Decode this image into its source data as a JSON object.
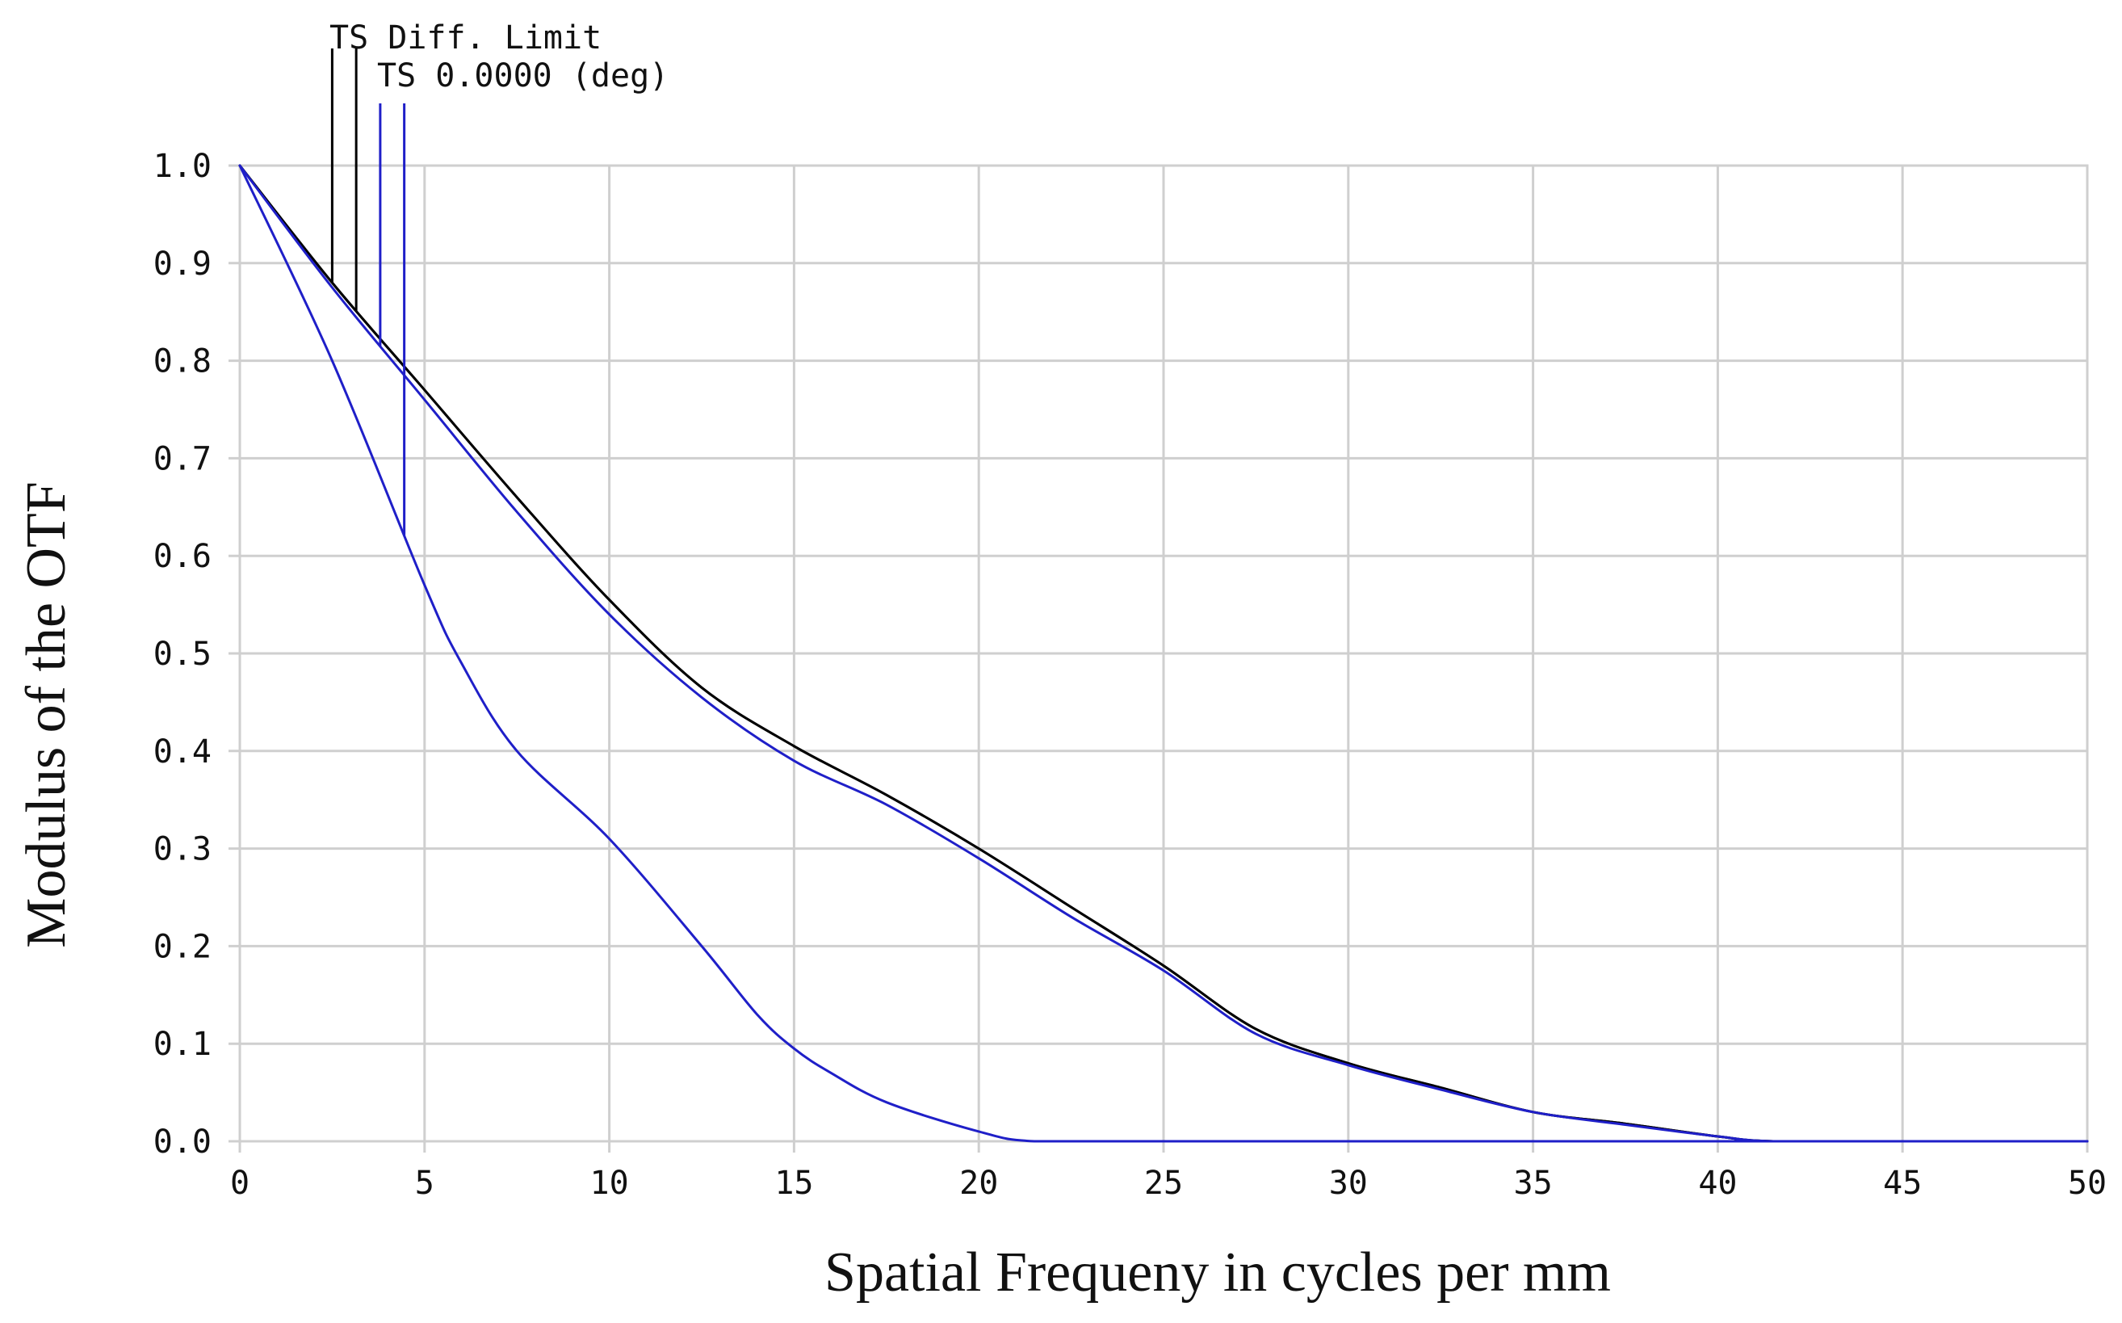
{
  "chart_data": {
    "type": "line",
    "title": "",
    "xlabel": "Spatial Frequeny in cycles per mm",
    "ylabel": "Modulus of the OTF",
    "xlim": [
      0,
      50
    ],
    "ylim": [
      0,
      1
    ],
    "grid": true,
    "x_ticks": [
      0,
      5,
      10,
      15,
      20,
      25,
      30,
      35,
      40,
      45,
      50
    ],
    "x_tick_labels": [
      "0",
      "5",
      "10",
      "15",
      "20",
      "25",
      "30",
      "35",
      "40",
      "45",
      "50"
    ],
    "y_ticks": [
      0,
      0.1,
      0.2,
      0.3,
      0.4,
      0.5,
      0.6,
      0.7,
      0.8,
      0.9,
      1.0
    ],
    "y_tick_labels": [
      "0.0",
      "0.1",
      "0.2",
      "0.3",
      "0.4",
      "0.5",
      "0.6",
      "0.7",
      "0.8",
      "0.9",
      "1.0"
    ],
    "legend": [
      "TS Diff. Limit",
      "TS 0.0000 (deg)"
    ],
    "legend_placement": "top-left",
    "series": [
      {
        "name": "TS Diff. Limit (T)",
        "color": "#000000",
        "legend_index": 0,
        "legend_marker_x": 2.5,
        "x": [
          0,
          2.5,
          5,
          7.5,
          10,
          12.5,
          15,
          17.5,
          20,
          22.5,
          25,
          27.5,
          30,
          32.5,
          35,
          37.5,
          40,
          41.5,
          45,
          50
        ],
        "y": [
          1.0,
          0.88,
          0.77,
          0.66,
          0.555,
          0.465,
          0.405,
          0.355,
          0.3,
          0.24,
          0.18,
          0.115,
          0.08,
          0.055,
          0.03,
          0.018,
          0.005,
          0.0,
          0.0,
          0.0
        ]
      },
      {
        "name": "TS Diff. Limit (S)",
        "color": "#000000",
        "legend_index": 0,
        "legend_marker_x": 3.15,
        "x": [
          0,
          2.5,
          5,
          7.5,
          10,
          12.5,
          15,
          17.5,
          20,
          22.5,
          25,
          27.5,
          30,
          32.5,
          35,
          37.5,
          40,
          41.5,
          45,
          50
        ],
        "y": [
          1.0,
          0.88,
          0.77,
          0.66,
          0.555,
          0.465,
          0.405,
          0.355,
          0.3,
          0.24,
          0.18,
          0.115,
          0.08,
          0.055,
          0.03,
          0.018,
          0.005,
          0.0,
          0.0,
          0.0
        ]
      },
      {
        "name": "TS 0.0000 (deg) (T)",
        "color": "#1f1fc8",
        "legend_index": 1,
        "legend_marker_x": 3.8,
        "x": [
          0,
          2.5,
          5,
          7.5,
          10,
          12.5,
          15,
          17.5,
          20,
          22.5,
          25,
          27.5,
          30,
          32.5,
          35,
          37.5,
          40,
          41.5,
          45,
          50
        ],
        "y": [
          1.0,
          0.875,
          0.76,
          0.645,
          0.54,
          0.455,
          0.39,
          0.345,
          0.29,
          0.23,
          0.175,
          0.11,
          0.078,
          0.053,
          0.03,
          0.017,
          0.005,
          0.0,
          0.0,
          0.0
        ]
      },
      {
        "name": "TS 0.0000 (deg) (S)",
        "color": "#1f1fc8",
        "legend_index": 1,
        "legend_marker_x": 4.45,
        "x": [
          0,
          2.5,
          5,
          6,
          7.5,
          10,
          12.5,
          14,
          15,
          16,
          17.5,
          20,
          21.5,
          25,
          30,
          35,
          40,
          45,
          50
        ],
        "y": [
          1.0,
          0.8,
          0.57,
          0.49,
          0.4,
          0.31,
          0.2,
          0.13,
          0.095,
          0.07,
          0.04,
          0.01,
          0.0,
          0.0,
          0.0,
          0.0,
          0.0,
          0.0,
          0.0
        ]
      }
    ]
  }
}
